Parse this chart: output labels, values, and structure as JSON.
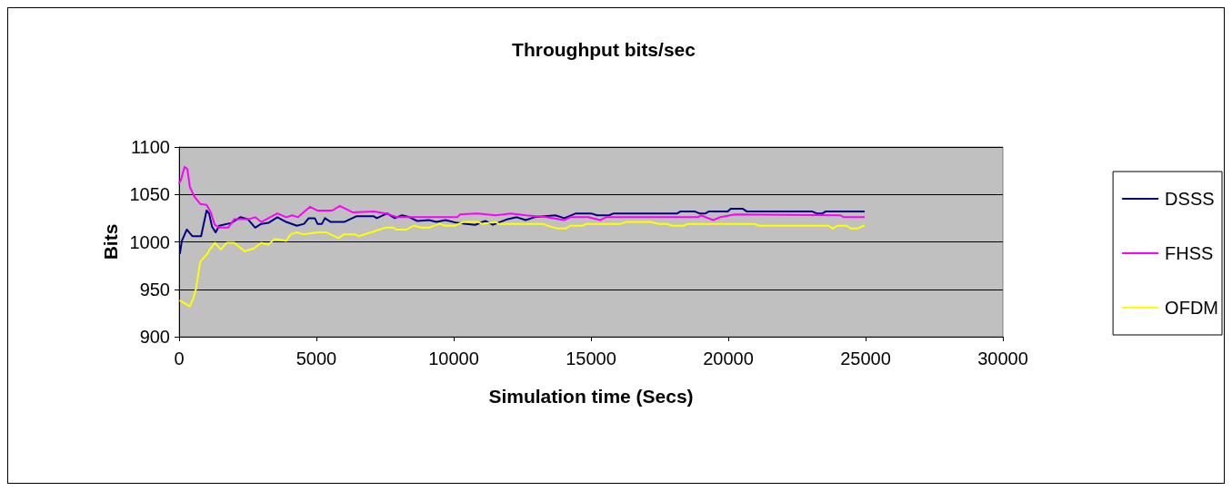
{
  "chart_data": {
    "type": "line",
    "title": "Throughput bits/sec",
    "xlabel": "Simulation time (Secs)",
    "ylabel": "Bits",
    "xlim": [
      0,
      30000
    ],
    "xticks": [
      0,
      5000,
      10000,
      15000,
      20000,
      25000,
      30000
    ],
    "ylim": [
      900,
      1100
    ],
    "yticks": [
      900,
      950,
      1000,
      1050,
      1100
    ],
    "grid": "y",
    "legend": "right",
    "marker": "none",
    "line_style": "solid",
    "series": [
      {
        "name": "DSSS",
        "color": "#000080",
        "x": [
          30,
          100,
          280,
          480,
          800,
          1000,
          1090,
          1200,
          1330,
          1460,
          1900,
          2230,
          2500,
          2770,
          2990,
          3250,
          3580,
          3900,
          4290,
          4550,
          4720,
          4940,
          5040,
          5200,
          5310,
          5520,
          6010,
          6450,
          7090,
          7200,
          7580,
          7850,
          8120,
          8390,
          8670,
          9100,
          9370,
          9700,
          10130,
          10780,
          11150,
          11430,
          11970,
          12300,
          12620,
          12940,
          13700,
          14030,
          14450,
          15000,
          15230,
          15660,
          15820,
          18140,
          18250,
          18790,
          18950,
          19170,
          19280,
          19980,
          20090,
          20520,
          20680,
          23060,
          23220,
          23430,
          23540,
          24940
        ],
        "values": [
          988,
          1001,
          1013,
          1006,
          1006,
          1033,
          1030,
          1016,
          1010,
          1017,
          1020,
          1026,
          1024,
          1015,
          1019,
          1020,
          1026,
          1021,
          1017,
          1019,
          1025,
          1025,
          1019,
          1019,
          1025,
          1021,
          1021,
          1027,
          1027,
          1025,
          1030,
          1025,
          1028,
          1026,
          1022,
          1023,
          1021,
          1023,
          1020,
          1018,
          1022,
          1018,
          1024,
          1026,
          1023,
          1026,
          1028,
          1025,
          1030,
          1030,
          1028,
          1028,
          1030,
          1030,
          1032,
          1032,
          1030,
          1030,
          1032,
          1032,
          1035,
          1035,
          1032,
          1032,
          1030,
          1030,
          1032,
          1032
        ]
      },
      {
        "name": "FHSS",
        "color": "#ff00ff",
        "x": [
          0,
          65,
          195,
          300,
          390,
          550,
          770,
          1000,
          1140,
          1300,
          1460,
          1790,
          2010,
          2550,
          2770,
          2990,
          3580,
          3900,
          4120,
          4330,
          4770,
          5040,
          5580,
          5850,
          6330,
          7090,
          7530,
          7950,
          10130,
          10230,
          10880,
          11530,
          12080,
          12630,
          13380,
          14030,
          14250,
          14900,
          15340,
          15550,
          18900,
          19000,
          19450,
          19700,
          20250,
          24090,
          24200,
          24940
        ],
        "values": [
          1062,
          1065,
          1079,
          1077,
          1058,
          1048,
          1040,
          1039,
          1032,
          1018,
          1015,
          1015,
          1024,
          1024,
          1026,
          1021,
          1030,
          1026,
          1028,
          1026,
          1037,
          1033,
          1033,
          1038,
          1031,
          1032,
          1030,
          1026,
          1026,
          1029,
          1030,
          1028,
          1030,
          1028,
          1026,
          1023,
          1026,
          1026,
          1023,
          1026,
          1026,
          1028,
          1023,
          1026,
          1029,
          1028,
          1026,
          1026
        ]
      },
      {
        "name": "OFDM",
        "color": "#ffff00",
        "x": [
          40,
          390,
          520,
          610,
          770,
          1040,
          1120,
          1300,
          1520,
          1730,
          2010,
          2390,
          2720,
          2990,
          3250,
          3470,
          3750,
          3900,
          4060,
          4290,
          4500,
          5040,
          5370,
          5800,
          6010,
          6390,
          6550,
          7530,
          7800,
          7910,
          8280,
          8550,
          8820,
          9100,
          9480,
          9700,
          10020,
          10350,
          10880,
          11040,
          11530,
          11640,
          13270,
          13420,
          13810,
          14070,
          14250,
          14680,
          14850,
          16090,
          16260,
          17180,
          17450,
          17770,
          17940,
          18370,
          18530,
          20950,
          21110,
          23650,
          23810,
          23970,
          24310,
          24470,
          24680,
          24940
        ],
        "values": [
          938,
          932,
          941,
          950,
          979,
          988,
          992,
          999,
          992,
          999,
          999,
          990,
          993,
          999,
          997,
          1003,
          1002,
          1001,
          1008,
          1010,
          1008,
          1010,
          1010,
          1004,
          1008,
          1008,
          1006,
          1015,
          1015,
          1013,
          1013,
          1017,
          1015,
          1015,
          1019,
          1017,
          1017,
          1021,
          1021,
          1019,
          1021,
          1019,
          1019,
          1017,
          1014,
          1014,
          1017,
          1017,
          1019,
          1019,
          1021,
          1021,
          1019,
          1019,
          1017,
          1017,
          1019,
          1019,
          1017,
          1017,
          1014,
          1017,
          1017,
          1014,
          1014,
          1017
        ]
      }
    ]
  }
}
